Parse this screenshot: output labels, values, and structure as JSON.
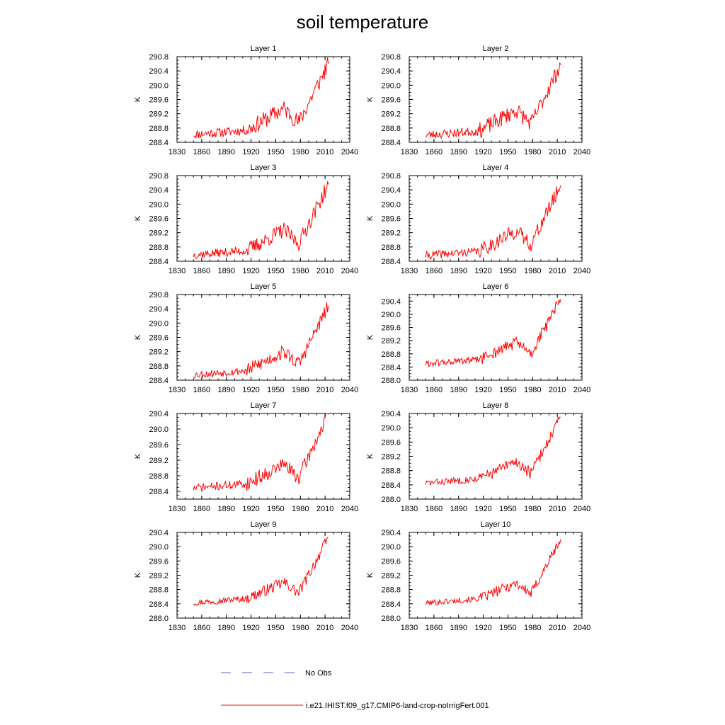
{
  "title": "soil temperature",
  "legend": {
    "entries": [
      {
        "label": "No Obs",
        "color": "#5a63c8",
        "style": "dashed"
      },
      {
        "label": "i.e21.IHIST.f09_g17.CMIP6-land-crop-noIrrigFert.001",
        "color": "#ff0000",
        "style": "solid"
      }
    ]
  },
  "chart_data": [
    {
      "type": "line",
      "title": "Layer 1",
      "ylabel": "K",
      "xlim": [
        1830,
        2040
      ],
      "ylim": [
        288.4,
        290.8
      ],
      "xticks": [
        1830,
        1860,
        1890,
        1920,
        1950,
        1980,
        2010,
        2040
      ],
      "yticks": [
        "288.4",
        "288.8",
        "289.2",
        "289.6",
        "290.0",
        "290.4",
        "290.8"
      ],
      "series": [
        {
          "color": "#ff0000",
          "x_start": 1850,
          "x_end": 2014,
          "seed": 11,
          "y_start": 288.62,
          "y_mid": 289.35,
          "y_trough": 288.95,
          "y_end": 290.6,
          "noise": 0.24
        }
      ]
    },
    {
      "type": "line",
      "title": "Layer 2",
      "ylabel": "K",
      "xlim": [
        1830,
        2040
      ],
      "ylim": [
        288.4,
        290.8
      ],
      "xticks": [
        1830,
        1860,
        1890,
        1920,
        1950,
        1980,
        2010,
        2040
      ],
      "yticks": [
        "288.4",
        "288.8",
        "289.2",
        "289.6",
        "290.0",
        "290.4",
        "290.8"
      ],
      "series": [
        {
          "color": "#ff0000",
          "x_start": 1850,
          "x_end": 2014,
          "seed": 23,
          "y_start": 288.6,
          "y_mid": 289.3,
          "y_trough": 288.92,
          "y_end": 290.57,
          "noise": 0.23
        }
      ]
    },
    {
      "type": "line",
      "title": "Layer 3",
      "ylabel": "K",
      "xlim": [
        1830,
        2040
      ],
      "ylim": [
        288.4,
        290.8
      ],
      "xticks": [
        1830,
        1860,
        1890,
        1920,
        1950,
        1980,
        2010,
        2040
      ],
      "yticks": [
        "288.4",
        "288.8",
        "289.2",
        "289.6",
        "290.0",
        "290.4",
        "290.8"
      ],
      "series": [
        {
          "color": "#ff0000",
          "x_start": 1850,
          "x_end": 2014,
          "seed": 37,
          "y_start": 288.58,
          "y_mid": 289.28,
          "y_trough": 288.9,
          "y_end": 290.55,
          "noise": 0.22
        }
      ]
    },
    {
      "type": "line",
      "title": "Layer 4",
      "ylabel": "K",
      "xlim": [
        1830,
        2040
      ],
      "ylim": [
        288.4,
        290.8
      ],
      "xticks": [
        1830,
        1860,
        1890,
        1920,
        1950,
        1980,
        2010,
        2040
      ],
      "yticks": [
        "288.4",
        "288.8",
        "289.2",
        "289.6",
        "290.0",
        "290.4",
        "290.8"
      ],
      "series": [
        {
          "color": "#ff0000",
          "x_start": 1850,
          "x_end": 2014,
          "seed": 41,
          "y_start": 288.56,
          "y_mid": 289.25,
          "y_trough": 288.88,
          "y_end": 290.52,
          "noise": 0.21
        }
      ]
    },
    {
      "type": "line",
      "title": "Layer 5",
      "ylabel": "K",
      "xlim": [
        1830,
        2040
      ],
      "ylim": [
        288.4,
        290.8
      ],
      "xticks": [
        1830,
        1860,
        1890,
        1920,
        1950,
        1980,
        2010,
        2040
      ],
      "yticks": [
        "288.4",
        "288.8",
        "289.2",
        "289.6",
        "290.0",
        "290.4",
        "290.8"
      ],
      "series": [
        {
          "color": "#ff0000",
          "x_start": 1850,
          "x_end": 2014,
          "seed": 53,
          "y_start": 288.55,
          "y_mid": 289.2,
          "y_trough": 288.85,
          "y_end": 290.48,
          "noise": 0.2
        }
      ]
    },
    {
      "type": "line",
      "title": "Layer 6",
      "ylabel": "K",
      "xlim": [
        1830,
        2040
      ],
      "ylim": [
        288.0,
        290.6
      ],
      "xticks": [
        1830,
        1860,
        1890,
        1920,
        1950,
        1980,
        2010,
        2040
      ],
      "yticks": [
        "288.0",
        "288.4",
        "288.8",
        "289.2",
        "289.6",
        "290.0",
        "290.4"
      ],
      "series": [
        {
          "color": "#ff0000",
          "x_start": 1850,
          "x_end": 2014,
          "seed": 61,
          "y_start": 288.5,
          "y_mid": 289.15,
          "y_trough": 288.8,
          "y_end": 290.45,
          "noise": 0.19
        }
      ]
    },
    {
      "type": "line",
      "title": "Layer 7",
      "ylabel": "K",
      "xlim": [
        1830,
        2040
      ],
      "ylim": [
        288.2,
        290.4
      ],
      "xticks": [
        1830,
        1860,
        1890,
        1920,
        1950,
        1980,
        2010,
        2040
      ],
      "yticks": [
        "288.4",
        "288.8",
        "289.2",
        "289.6",
        "290.0",
        "290.4"
      ],
      "series": [
        {
          "color": "#ff0000",
          "x_start": 1850,
          "x_end": 2014,
          "seed": 71,
          "y_start": 288.48,
          "y_mid": 289.1,
          "y_trough": 288.75,
          "y_end": 290.38,
          "noise": 0.19
        }
      ]
    },
    {
      "type": "line",
      "title": "Layer 8",
      "ylabel": "K",
      "xlim": [
        1830,
        2040
      ],
      "ylim": [
        288.0,
        290.4
      ],
      "xticks": [
        1830,
        1860,
        1890,
        1920,
        1950,
        1980,
        2010,
        2040
      ],
      "yticks": [
        "288.0",
        "288.4",
        "288.8",
        "289.2",
        "289.6",
        "290.0",
        "290.4"
      ],
      "series": [
        {
          "color": "#ff0000",
          "x_start": 1850,
          "x_end": 2014,
          "seed": 83,
          "y_start": 288.45,
          "y_mid": 289.05,
          "y_trough": 288.72,
          "y_end": 290.3,
          "noise": 0.17
        }
      ]
    },
    {
      "type": "line",
      "title": "Layer 9",
      "ylabel": "K",
      "xlim": [
        1830,
        2040
      ],
      "ylim": [
        288.0,
        290.4
      ],
      "xticks": [
        1830,
        1860,
        1890,
        1920,
        1950,
        1980,
        2010,
        2040
      ],
      "yticks": [
        "288.0",
        "288.4",
        "288.8",
        "289.2",
        "289.6",
        "290.0",
        "290.4"
      ],
      "series": [
        {
          "color": "#ff0000",
          "x_start": 1850,
          "x_end": 2014,
          "seed": 97,
          "y_start": 288.43,
          "y_mid": 289.0,
          "y_trough": 288.7,
          "y_end": 290.25,
          "noise": 0.16
        }
      ]
    },
    {
      "type": "line",
      "title": "Layer 10",
      "ylabel": "K",
      "xlim": [
        1830,
        2040
      ],
      "ylim": [
        288.0,
        290.4
      ],
      "xticks": [
        1830,
        1860,
        1890,
        1920,
        1950,
        1980,
        2010,
        2040
      ],
      "yticks": [
        "288.0",
        "288.4",
        "288.8",
        "289.2",
        "289.6",
        "290.0",
        "290.4"
      ],
      "series": [
        {
          "color": "#ff0000",
          "x_start": 1850,
          "x_end": 2014,
          "seed": 101,
          "y_start": 288.42,
          "y_mid": 288.98,
          "y_trough": 288.68,
          "y_end": 290.2,
          "noise": 0.15
        }
      ]
    }
  ]
}
